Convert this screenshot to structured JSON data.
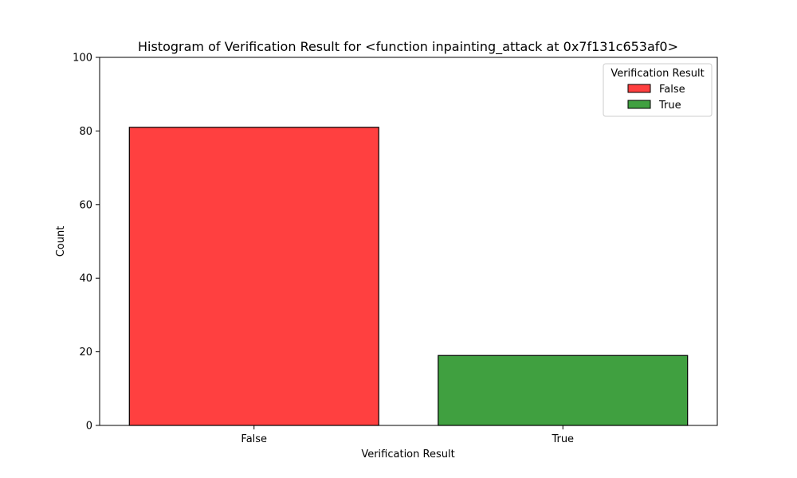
{
  "chart_data": {
    "type": "bar",
    "title": "Histogram of Verification Result for <function inpainting_attack at 0x7f131c653af0>",
    "xlabel": "Verification Result",
    "ylabel": "Count",
    "categories": [
      "False",
      "True"
    ],
    "values": [
      81,
      19
    ],
    "colors": [
      "#ff4040",
      "#40a040"
    ],
    "edge_color": "#000000",
    "ylim": [
      0,
      100
    ],
    "yticks": [
      0,
      20,
      40,
      60,
      80,
      100
    ],
    "grid": false,
    "legend": {
      "title": "Verification Result",
      "placement": "top-right",
      "entries": [
        "False",
        "True"
      ]
    }
  }
}
